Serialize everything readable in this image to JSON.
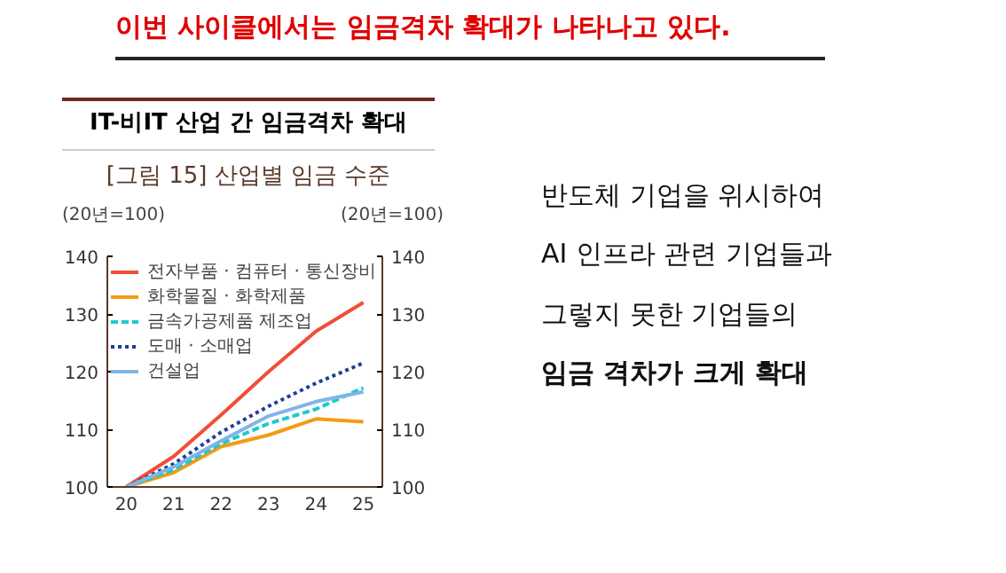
{
  "chart_data": {
    "type": "line",
    "title": "IT-비IT 산업 간 임금격차 확대",
    "subtitle": "[그림 15] 산업별 임금 수준",
    "ylabel": "(20년=100)",
    "y2label": "(20년=100)",
    "annotations": [
      "이번 사이클에서는 임금격차 확대가 나타나고 있다.",
      "반도체 기업을 위시하여",
      "AI 인프라 관련 기업들과",
      "그렇지 못한 기업들의",
      "임금 격차가 크게 확대"
    ],
    "x": [
      20,
      21,
      22,
      23,
      24,
      25
    ],
    "xlim": [
      19.6,
      25.4
    ],
    "xticks": [
      20,
      21,
      22,
      23,
      24,
      25
    ],
    "ylim": [
      100,
      140
    ],
    "yticks": [
      100,
      110,
      120,
      130,
      140
    ],
    "y2lim": [
      100,
      140
    ],
    "y2ticks": [
      100,
      110,
      120,
      130,
      140
    ],
    "grid": false,
    "legend": "top left",
    "marker": "none",
    "series": [
      {
        "name": "전자부품 · 컴퓨터 · 통신장비",
        "color": "#f04e37",
        "line_style": "solid",
        "values": [
          100,
          105.3,
          112.5,
          120,
          127,
          132
        ]
      },
      {
        "name": "화학물질 · 화학제품",
        "color": "#f39c12",
        "line_style": "solid",
        "values": [
          100,
          102.5,
          107,
          109,
          111.8,
          111.3
        ]
      },
      {
        "name": "금속가공제품 제조업",
        "color": "#1ec8d2",
        "line_style": "dashed",
        "values": [
          100,
          103,
          107.5,
          111,
          113.5,
          117.2
        ]
      },
      {
        "name": "도매 · 소매업",
        "color": "#1f3f9a",
        "line_style": "dotted",
        "values": [
          100,
          104,
          109.5,
          114,
          118,
          121.5
        ]
      },
      {
        "name": "건설업",
        "color": "#7fb6e6",
        "line_style": "solid",
        "values": [
          100,
          103.5,
          108,
          112.3,
          114.8,
          116.5
        ]
      }
    ]
  }
}
